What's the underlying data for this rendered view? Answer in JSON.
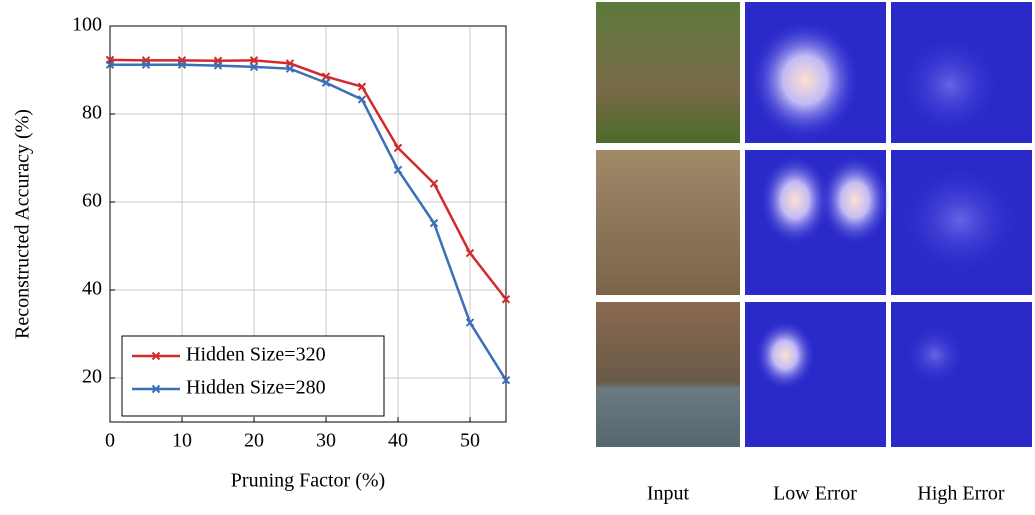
{
  "chart_data": {
    "type": "line",
    "xlabel": "Pruning Factor (%)",
    "ylabel": "Reconstructed Accuracy (%)",
    "x": [
      0,
      5,
      10,
      15,
      20,
      25,
      30,
      35,
      40,
      45,
      50,
      55
    ],
    "series": [
      {
        "name": "Hidden Size=320",
        "color": "#d42a2a",
        "values": [
          92.3,
          92.2,
          92.2,
          92.1,
          92.2,
          91.5,
          88.5,
          86.2,
          72.3,
          64.2,
          48.4,
          37.9
        ]
      },
      {
        "name": "Hidden Size=280",
        "color": "#3b6fb6",
        "values": [
          91.2,
          91.2,
          91.2,
          91.0,
          90.7,
          90.3,
          87.1,
          83.3,
          67.3,
          55.2,
          32.6,
          19.5
        ]
      }
    ],
    "xlim": [
      0,
      55
    ],
    "xticks": [
      0,
      10,
      20,
      30,
      40,
      50
    ],
    "ylim": [
      10,
      100
    ],
    "yticks": [
      20,
      40,
      60,
      80,
      100
    ],
    "grid": true,
    "legend": "lower left"
  },
  "image_grid": {
    "columns": [
      "Input",
      "Low Error",
      "High Error"
    ]
  }
}
